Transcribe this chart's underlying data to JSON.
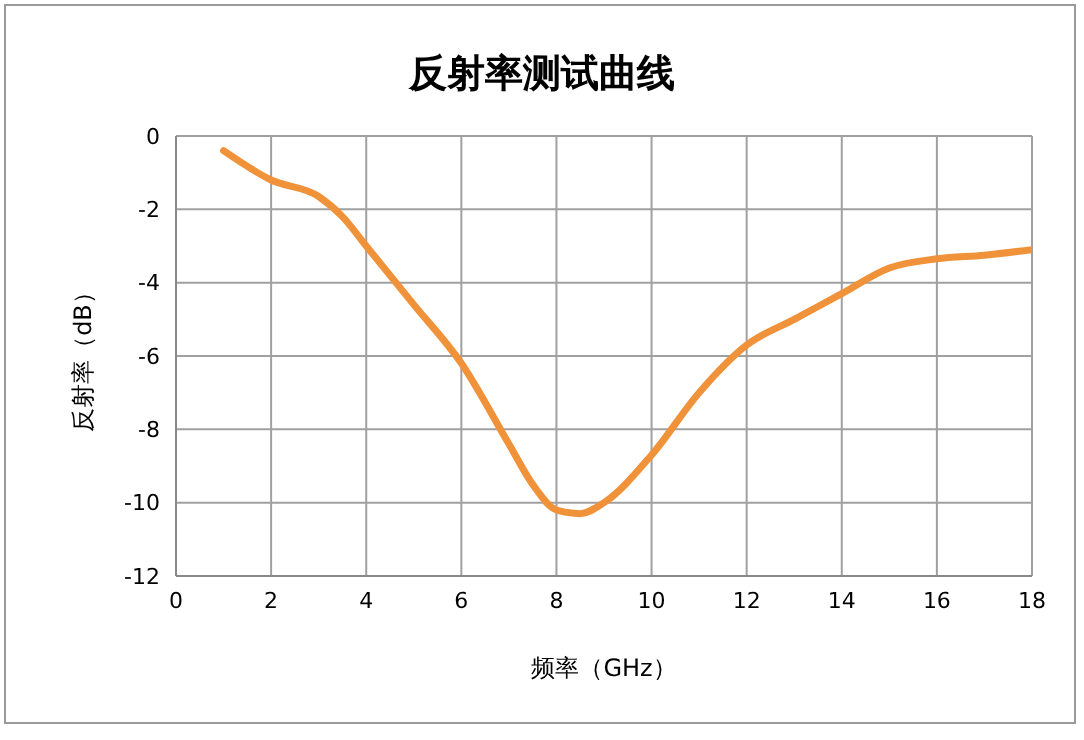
{
  "chart_data": {
    "type": "line",
    "title": "反射率测试曲线",
    "xlabel": "频率（GHz）",
    "ylabel": "反射率（dB）",
    "x": [
      1,
      2,
      3,
      3.5,
      4,
      5,
      6,
      7,
      7.5,
      8,
      8.5,
      9,
      10,
      11,
      12,
      13,
      14,
      15,
      16,
      17,
      18
    ],
    "series": [
      {
        "color": "#f0923a",
        "values": [
          -0.4,
          -1.2,
          -1.65,
          -2.2,
          -3.0,
          -4.6,
          -6.2,
          -8.4,
          -9.5,
          -10.2,
          -10.3,
          -10.0,
          -8.7,
          -7.0,
          -5.7,
          -5.0,
          -4.3,
          -3.6,
          -3.35,
          -3.25,
          -3.1
        ]
      }
    ],
    "xlim": [
      0,
      18
    ],
    "xticks": [
      0,
      2,
      4,
      6,
      8,
      10,
      12,
      14,
      16,
      18
    ],
    "ylim": [
      -12,
      0
    ],
    "yticks": [
      -12,
      -10,
      -8,
      -6,
      -4,
      -2,
      0
    ],
    "grid": true,
    "legend": false,
    "marker": "none",
    "line_style": "solid"
  }
}
